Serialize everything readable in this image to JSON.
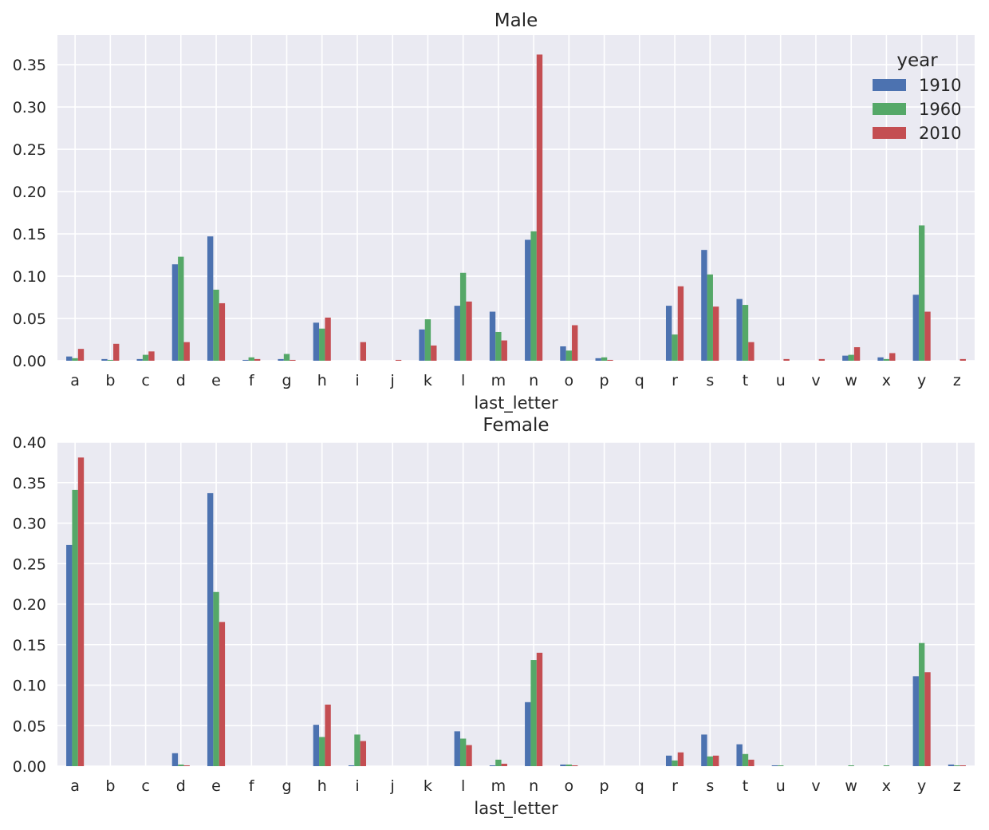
{
  "chart_data": [
    {
      "type": "bar",
      "title": "Male",
      "xlabel": "last_letter",
      "ylabel": "",
      "ylim": [
        0,
        0.385
      ],
      "yticks": [
        "0.00",
        "0.05",
        "0.10",
        "0.15",
        "0.20",
        "0.25",
        "0.30",
        "0.35"
      ],
      "grid": true,
      "legend": {
        "title": "year",
        "placement": "top-right"
      },
      "categories": [
        "a",
        "b",
        "c",
        "d",
        "e",
        "f",
        "g",
        "h",
        "i",
        "j",
        "k",
        "l",
        "m",
        "n",
        "o",
        "p",
        "q",
        "r",
        "s",
        "t",
        "u",
        "v",
        "w",
        "x",
        "y",
        "z"
      ],
      "series": [
        {
          "name": "1910",
          "color": "#4c72b0",
          "values": [
            0.005,
            0.002,
            0.002,
            0.114,
            0.147,
            0.001,
            0.002,
            0.045,
            0.0,
            0.0,
            0.037,
            0.065,
            0.058,
            0.143,
            0.017,
            0.003,
            0.0,
            0.065,
            0.131,
            0.073,
            0.0,
            0.0,
            0.006,
            0.004,
            0.078,
            0.0
          ]
        },
        {
          "name": "1960",
          "color": "#55a868",
          "values": [
            0.003,
            0.001,
            0.007,
            0.123,
            0.084,
            0.004,
            0.008,
            0.038,
            0.0,
            0.0,
            0.049,
            0.104,
            0.034,
            0.153,
            0.012,
            0.004,
            0.0,
            0.031,
            0.102,
            0.066,
            0.0,
            0.0,
            0.007,
            0.002,
            0.16,
            0.0
          ]
        },
        {
          "name": "2010",
          "color": "#c44e52",
          "values": [
            0.014,
            0.02,
            0.011,
            0.022,
            0.068,
            0.002,
            0.001,
            0.051,
            0.022,
            0.001,
            0.018,
            0.07,
            0.024,
            0.362,
            0.042,
            0.001,
            0.0,
            0.088,
            0.064,
            0.022,
            0.002,
            0.002,
            0.016,
            0.009,
            0.058,
            0.002
          ]
        }
      ]
    },
    {
      "type": "bar",
      "title": "Female",
      "xlabel": "last_letter",
      "ylabel": "",
      "ylim": [
        0,
        0.4
      ],
      "yticks": [
        "0.00",
        "0.05",
        "0.10",
        "0.15",
        "0.20",
        "0.25",
        "0.30",
        "0.35",
        "0.40"
      ],
      "grid": true,
      "categories": [
        "a",
        "b",
        "c",
        "d",
        "e",
        "f",
        "g",
        "h",
        "i",
        "j",
        "k",
        "l",
        "m",
        "n",
        "o",
        "p",
        "q",
        "r",
        "s",
        "t",
        "u",
        "v",
        "w",
        "x",
        "y",
        "z"
      ],
      "series": [
        {
          "name": "1910",
          "color": "#4c72b0",
          "values": [
            0.273,
            0.0,
            0.0,
            0.016,
            0.337,
            0.0,
            0.0,
            0.051,
            0.001,
            0.0,
            0.0,
            0.043,
            0.001,
            0.079,
            0.002,
            0.0,
            0.0,
            0.013,
            0.039,
            0.027,
            0.001,
            0.0,
            0.0,
            0.0,
            0.111,
            0.002
          ]
        },
        {
          "name": "1960",
          "color": "#55a868",
          "values": [
            0.341,
            0.0,
            0.0,
            0.002,
            0.215,
            0.0,
            0.0,
            0.036,
            0.039,
            0.0,
            0.0,
            0.034,
            0.008,
            0.131,
            0.002,
            0.0,
            0.0,
            0.007,
            0.012,
            0.015,
            0.001,
            0.0,
            0.001,
            0.001,
            0.152,
            0.001
          ]
        },
        {
          "name": "2010",
          "color": "#c44e52",
          "values": [
            0.381,
            0.0,
            0.0,
            0.001,
            0.178,
            0.0,
            0.0,
            0.076,
            0.031,
            0.0,
            0.0,
            0.026,
            0.003,
            0.14,
            0.001,
            0.0,
            0.0,
            0.017,
            0.013,
            0.008,
            0.0,
            0.0,
            0.0,
            0.0,
            0.116,
            0.001
          ]
        }
      ]
    }
  ]
}
